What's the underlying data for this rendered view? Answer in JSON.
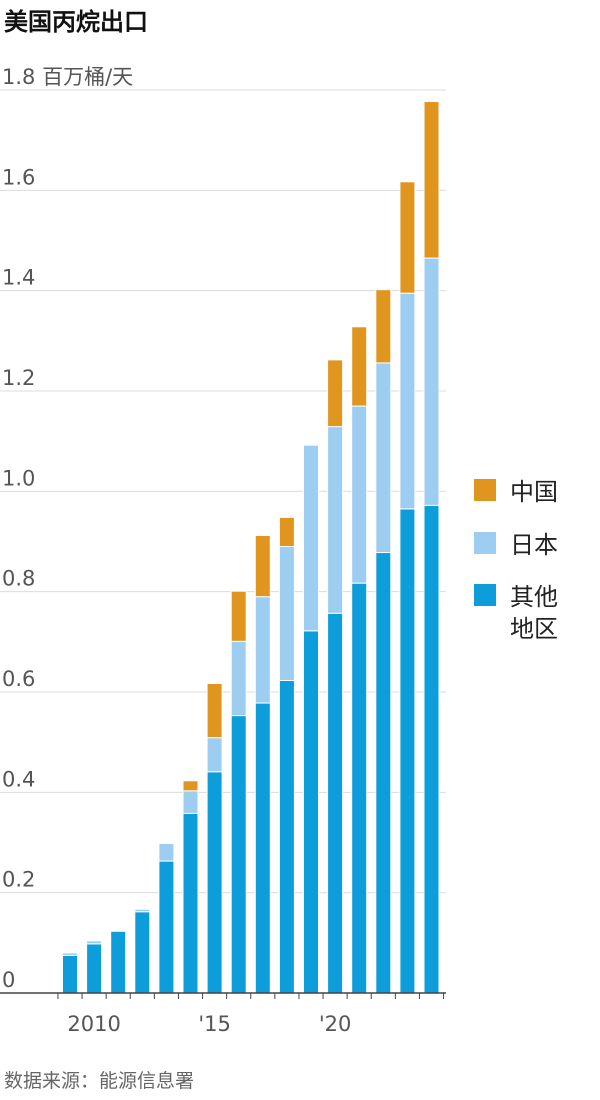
{
  "title": "美国丙烷出口",
  "source": "数据来源：能源信息署",
  "chart_data": {
    "type": "bar",
    "stacked": true,
    "unit": "百万桶/天",
    "ylim": [
      0,
      1.8
    ],
    "yticks": [
      "0",
      "0.2",
      "0.4",
      "0.6",
      "0.8",
      "1.0",
      "1.2",
      "1.4",
      "1.6",
      "1.8"
    ],
    "x": [
      2009,
      2010,
      2011,
      2012,
      2013,
      2014,
      2015,
      2016,
      2017,
      2018,
      2019,
      2020,
      2021,
      2022,
      2023,
      2024
    ],
    "xtick_labels": [
      {
        "x": 2010,
        "label": "2010"
      },
      {
        "x": 2015,
        "label": "'15"
      },
      {
        "x": 2020,
        "label": "'20"
      }
    ],
    "grid": true,
    "legend": "right",
    "series": [
      {
        "name": "其他地区",
        "color": "#0d9ddb",
        "values": [
          0.075,
          0.098,
          0.123,
          0.162,
          0.263,
          0.358,
          0.441,
          0.553,
          0.578,
          0.623,
          0.722,
          0.757,
          0.817,
          0.878,
          0.965,
          0.972
        ]
      },
      {
        "name": "日本",
        "color": "#9dcdf0",
        "values": [
          0.005,
          0.006,
          0.0,
          0.005,
          0.035,
          0.045,
          0.068,
          0.148,
          0.212,
          0.267,
          0.37,
          0.372,
          0.353,
          0.378,
          0.43,
          0.493
        ]
      },
      {
        "name": "中国",
        "color": "#e0951f",
        "values": [
          0.0,
          0.0,
          0.0,
          0.0,
          0.0,
          0.02,
          0.108,
          0.1,
          0.122,
          0.058,
          0.0,
          0.133,
          0.158,
          0.146,
          0.222,
          0.312
        ]
      }
    ],
    "legend_lines": [
      [
        "中国"
      ],
      [
        "日本"
      ],
      [
        "其他",
        "地区"
      ]
    ]
  }
}
